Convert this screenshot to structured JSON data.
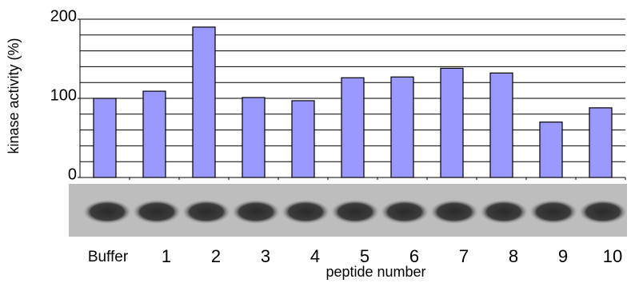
{
  "chart_data": {
    "type": "bar",
    "y_label": "kinase activity (%)",
    "x_label": "peptide number",
    "categories": [
      "Buffer",
      "1",
      "2",
      "3",
      "4",
      "5",
      "6",
      "7",
      "8",
      "9",
      "10"
    ],
    "values": [
      100,
      109,
      190,
      101,
      97,
      126,
      127,
      138,
      132,
      70,
      88
    ],
    "color": "#9999ff",
    "ylim": [
      0,
      200
    ],
    "yticks": [
      0,
      100,
      200
    ],
    "grid_lines": [
      20,
      40,
      60,
      80,
      100,
      120,
      140,
      160,
      180,
      200
    ],
    "grid": true
  }
}
